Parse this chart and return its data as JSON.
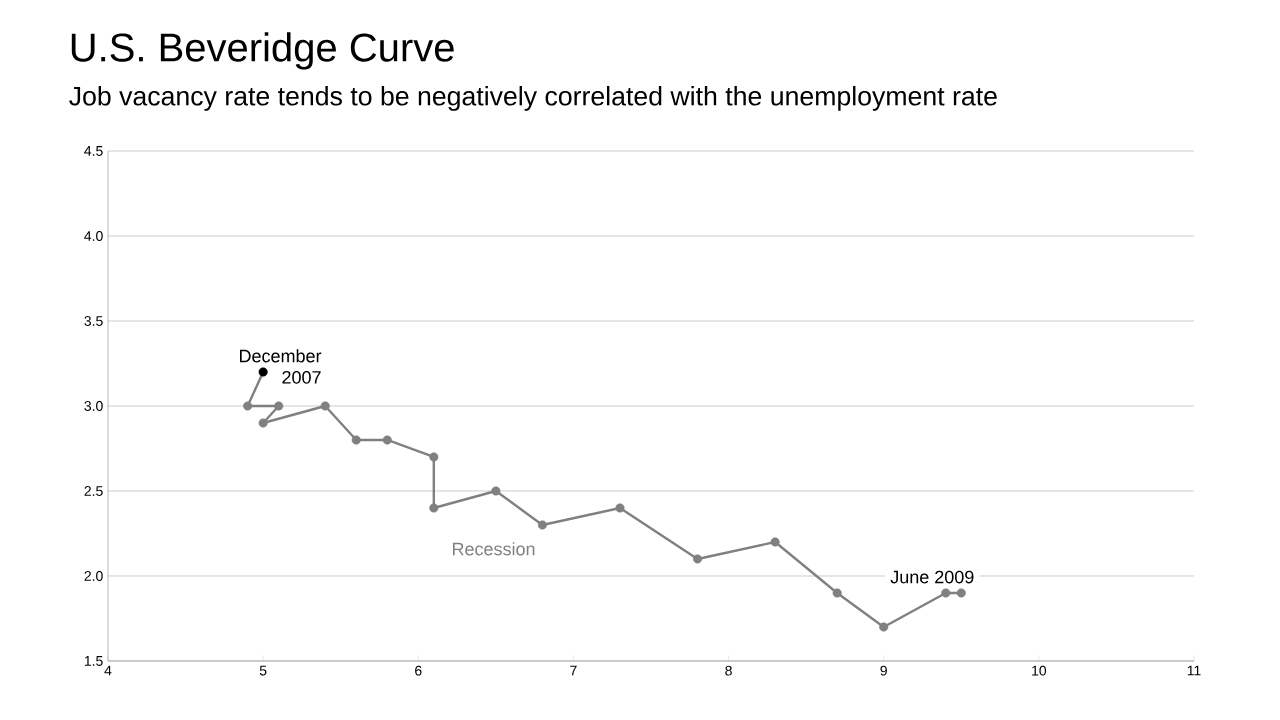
{
  "chart_data": {
    "type": "line",
    "title": "U.S. Beveridge Curve",
    "subtitle": "Job vacancy rate tends to be negatively correlated with the unemployment rate",
    "x": [
      5.0,
      4.9,
      5.1,
      5.0,
      5.4,
      5.6,
      5.8,
      6.1,
      6.1,
      6.5,
      6.8,
      7.3,
      7.8,
      8.3,
      8.7,
      9.0,
      9.4,
      9.5
    ],
    "series": [
      {
        "color": "#808080",
        "colors": [
          "#000000",
          "#808080",
          "#808080",
          "#808080",
          "#808080",
          "#808080",
          "#808080",
          "#808080",
          "#808080",
          "#808080",
          "#808080",
          "#808080",
          "#808080",
          "#808080",
          "#808080",
          "#808080",
          "#808080",
          "#808080"
        ],
        "values": [
          3.2,
          3.0,
          3.0,
          2.9,
          3.0,
          2.8,
          2.8,
          2.7,
          2.4,
          2.5,
          2.3,
          2.4,
          2.1,
          2.2,
          1.9,
          1.7,
          1.9,
          1.9
        ]
      }
    ],
    "xlim": [
      4,
      11
    ],
    "xticks": [
      4,
      5,
      6,
      7,
      8,
      9,
      10,
      11
    ],
    "ylim": [
      1.5,
      4.5
    ],
    "yticks": [
      1.5,
      {
        "value": 2,
        "label": "2.0"
      },
      2.5,
      {
        "value": 3,
        "label": "3.0"
      },
      3.5,
      {
        "value": 4,
        "label": "4.0"
      },
      4.5
    ],
    "grid": "y",
    "marker": "circle",
    "line_style": "solid",
    "annotations": [
      {
        "text": "December 2007",
        "x": 5.0,
        "y": 3.2
      },
      {
        "text": "June 2009",
        "x": 9.5,
        "y": 1.9
      },
      "Recession"
    ]
  }
}
